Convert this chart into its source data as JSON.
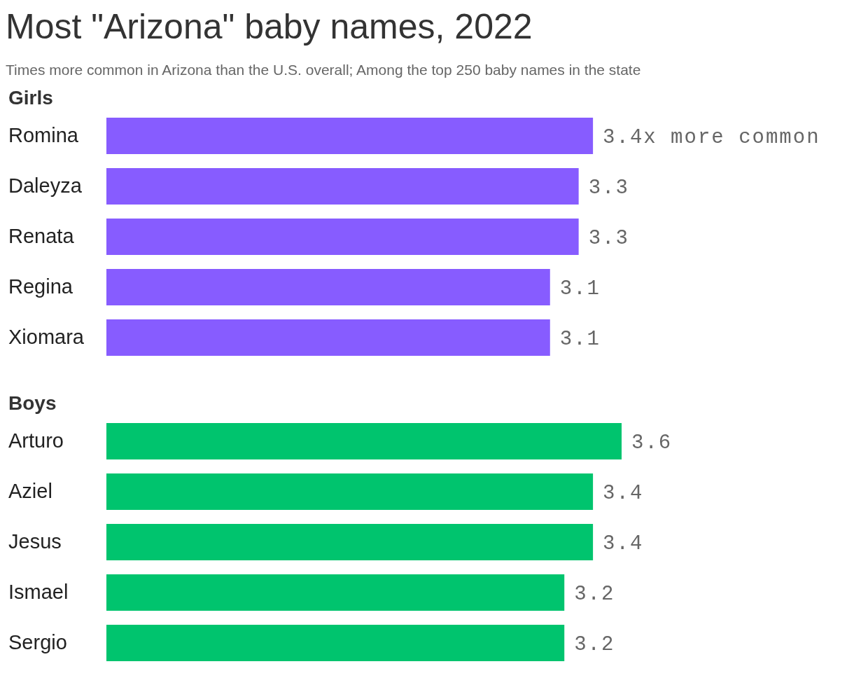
{
  "chart_data": [
    {
      "type": "bar",
      "orientation": "horizontal",
      "title": "Most \"Arizona\" baby names, 2022",
      "subtitle": "Times more common in Arizona than the U.S. overall; Among the top 250 baby names in the state",
      "ylabel": "Girls",
      "categories": [
        "Romina",
        "Daleyza",
        "Renata",
        "Regina",
        "Xiomara"
      ],
      "values": [
        3.4,
        3.3,
        3.3,
        3.1,
        3.1
      ],
      "value_labels": [
        "3.4x more common",
        "3.3",
        "3.3",
        "3.1",
        "3.1"
      ],
      "color": "#875cff",
      "grid": false,
      "legend": false
    },
    {
      "type": "bar",
      "orientation": "horizontal",
      "ylabel": "Boys",
      "categories": [
        "Arturo",
        "Aziel",
        "Jesus",
        "Ismael",
        "Sergio"
      ],
      "values": [
        3.6,
        3.4,
        3.4,
        3.2,
        3.2
      ],
      "value_labels": [
        "3.6",
        "3.4",
        "3.4",
        "3.2",
        "3.2"
      ],
      "color": "#00c46e",
      "grid": false,
      "legend": false
    }
  ]
}
